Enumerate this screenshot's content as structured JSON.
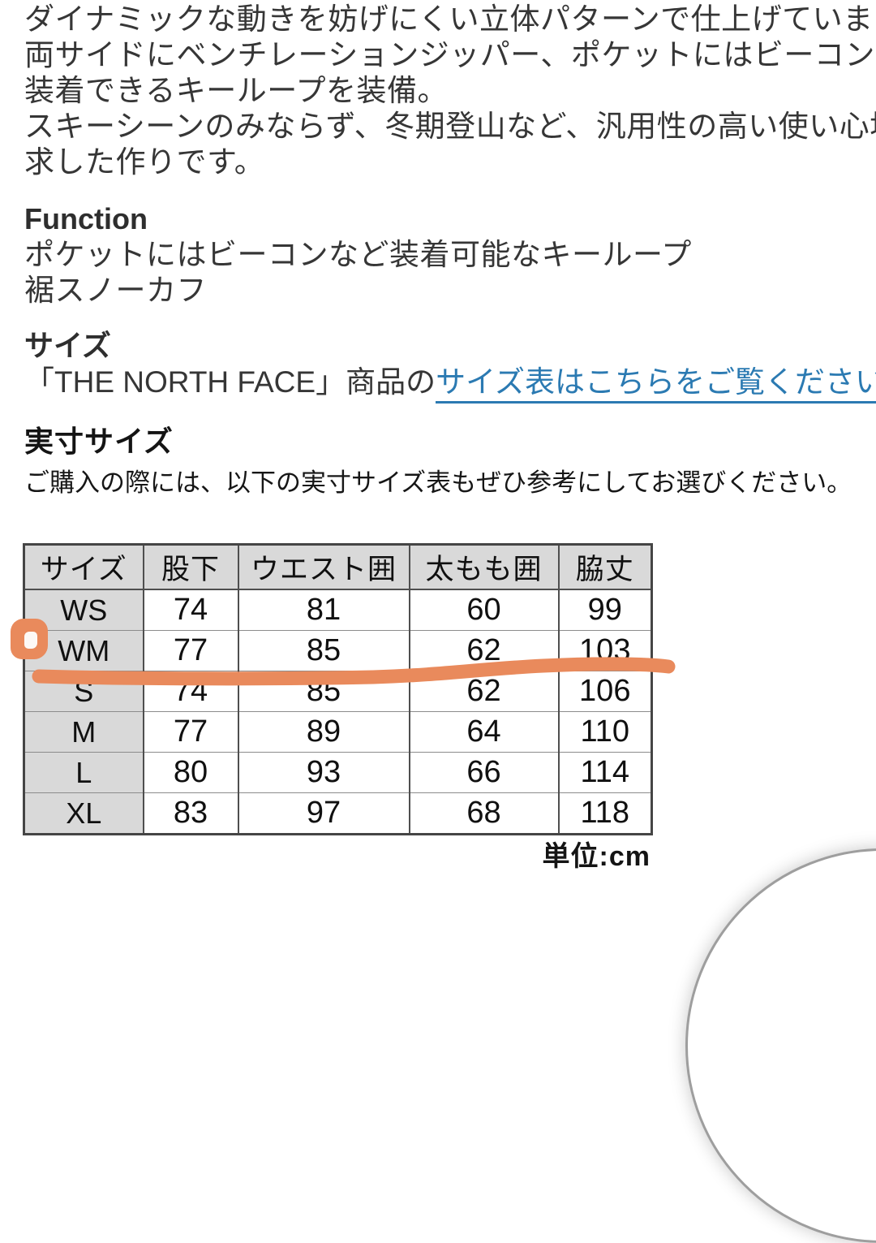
{
  "description": {
    "lines": [
      "ダイナミックな動きを妨げにくい立体パターンで仕上げています。",
      "両サイドにベンチレーションジッパー、ポケットにはビーコンなどを",
      "装着できるキーループを装備。",
      "スキーシーンのみならず、冬期登山など、汎用性の高い使い心地を追",
      "求した作りです。"
    ]
  },
  "function_section": {
    "heading": "Function",
    "items": [
      "ポケットにはビーコンなど装着可能なキーループ",
      "裾スノーカフ"
    ]
  },
  "size_section": {
    "heading": "サイズ",
    "text_before_link": "「THE NORTH FACE」商品の",
    "link_text": "サイズ表はこちらをご覧ください。",
    "link_color": "#2b7ab2"
  },
  "actual_size_section": {
    "heading": "実寸サイズ",
    "note": "ご購入の際には、以下の実寸サイズ表もぜひ参考にしてお選びください。"
  },
  "size_table": {
    "columns": [
      "サイズ",
      "股下",
      "ウエスト囲",
      "太もも囲",
      "脇丈"
    ],
    "rows": [
      {
        "size": "WS",
        "values": [
          "74",
          "81",
          "60",
          "99"
        ]
      },
      {
        "size": "WM",
        "values": [
          "77",
          "85",
          "62",
          "103"
        ],
        "highlighted": true
      },
      {
        "size": "S",
        "values": [
          "74",
          "85",
          "62",
          "106"
        ]
      },
      {
        "size": "M",
        "values": [
          "77",
          "89",
          "64",
          "110"
        ]
      },
      {
        "size": "L",
        "values": [
          "80",
          "93",
          "66",
          "114"
        ]
      },
      {
        "size": "XL",
        "values": [
          "83",
          "97",
          "68",
          "118"
        ]
      }
    ],
    "unit_label": "単位:cm",
    "header_background": "#d9d9d9"
  },
  "annotations": {
    "marker_color": "#e98a5c",
    "highlighted_row": "WM",
    "shapes": [
      "hand-drawn-circle-left-of-WM-row",
      "hand-drawn-underline-below-WM-row"
    ]
  },
  "floating_button": {
    "description": "white circular button partially visible in bottom-right corner"
  }
}
